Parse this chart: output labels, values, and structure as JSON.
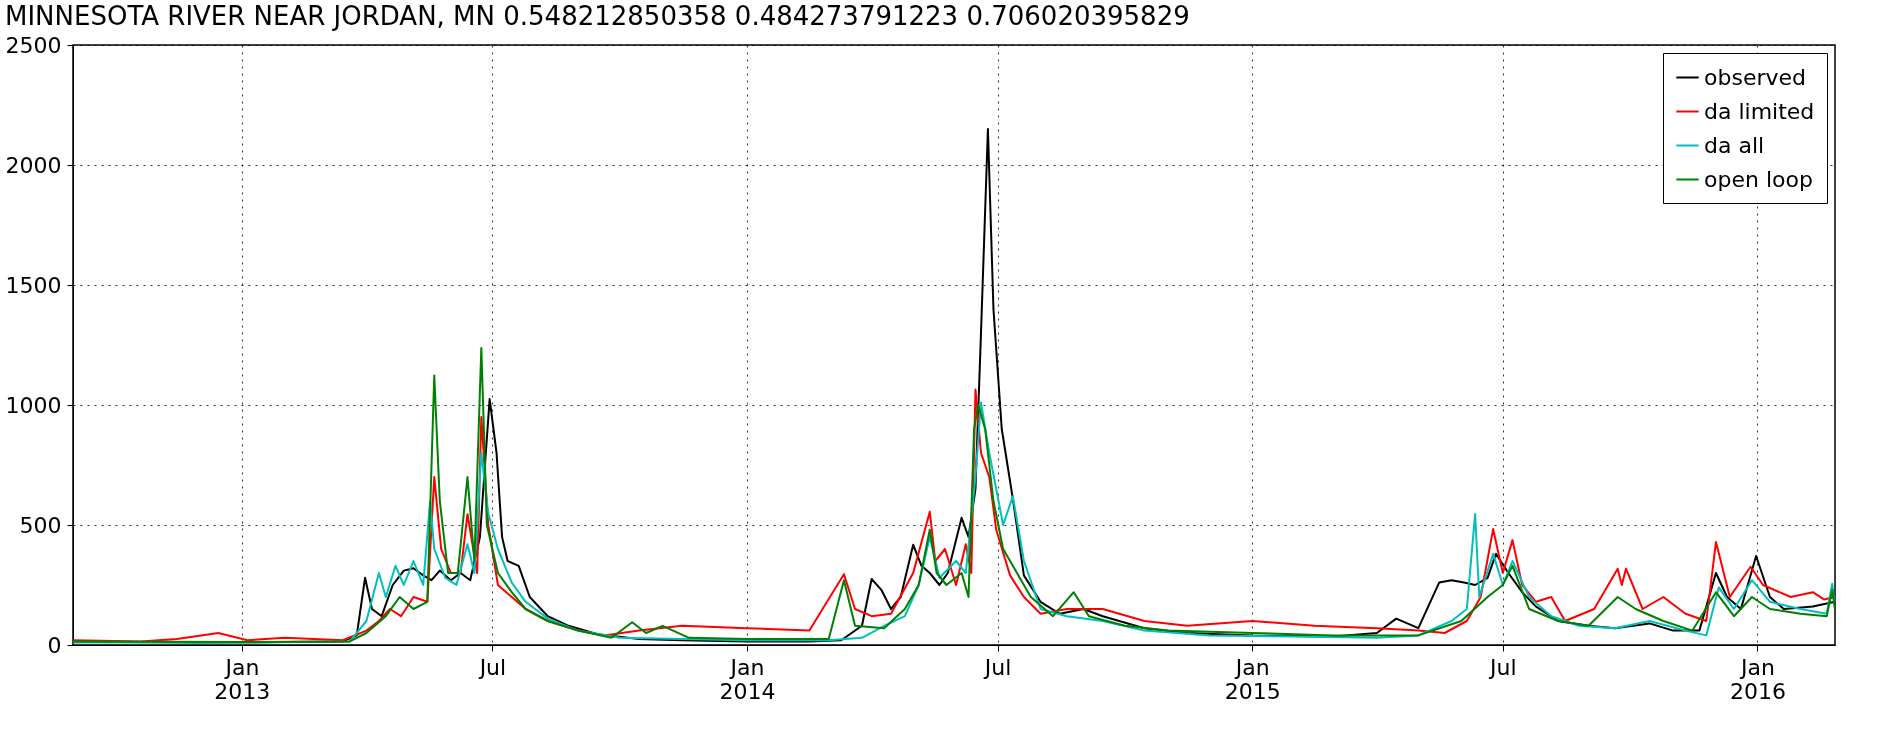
{
  "chart_data": {
    "type": "line",
    "title": "MINNESOTA RIVER NEAR JORDAN, MN     0.548212850358 0.484273791223 0.706020395829",
    "xlim": [
      "2012-09-01",
      "2016-02-26"
    ],
    "xticks": [
      {
        "value": "2013-01-01",
        "label": "Jan 2013"
      },
      {
        "value": "2013-07-01",
        "label": "Jul"
      },
      {
        "value": "2014-01-01",
        "label": "Jan 2014"
      },
      {
        "value": "2014-07-01",
        "label": "Jul"
      },
      {
        "value": "2015-01-01",
        "label": "Jan 2015"
      },
      {
        "value": "2015-07-01",
        "label": "Jul"
      },
      {
        "value": "2016-01-01",
        "label": "Jan 2016"
      }
    ],
    "ylim": [
      0,
      2500
    ],
    "yticks": [
      0,
      500,
      1000,
      1500,
      2000,
      2500
    ],
    "grid": true,
    "legend": "top right",
    "marker": "none",
    "line_style": "solid",
    "series": [
      {
        "name": "observed",
        "color": "#000000",
        "x": [
          "2012-09-01",
          "2012-10-15",
          "2012-12-01",
          "2013-02-01",
          "2013-03-15",
          "2013-03-25",
          "2013-03-31",
          "2013-04-05",
          "2013-04-12",
          "2013-04-20",
          "2013-04-28",
          "2013-05-05",
          "2013-05-12",
          "2013-05-18",
          "2013-05-24",
          "2013-06-01",
          "2013-06-08",
          "2013-06-15",
          "2013-06-22",
          "2013-06-29",
          "2013-07-04",
          "2013-07-08",
          "2013-07-12",
          "2013-07-20",
          "2013-07-28",
          "2013-08-10",
          "2013-08-25",
          "2013-09-15",
          "2013-10-15",
          "2013-11-15",
          "2014-01-01",
          "2014-02-15",
          "2014-03-10",
          "2014-03-25",
          "2014-04-01",
          "2014-04-08",
          "2014-04-15",
          "2014-04-22",
          "2014-05-01",
          "2014-05-07",
          "2014-05-13",
          "2014-05-20",
          "2014-05-26",
          "2014-06-05",
          "2014-06-10",
          "2014-06-15",
          "2014-06-19",
          "2014-06-24",
          "2014-06-28",
          "2014-07-04",
          "2014-07-12",
          "2014-07-20",
          "2014-08-01",
          "2014-08-15",
          "2014-09-01",
          "2014-09-15",
          "2014-10-15",
          "2014-11-15",
          "2015-01-01",
          "2015-03-01",
          "2015-04-01",
          "2015-04-15",
          "2015-05-01",
          "2015-05-16",
          "2015-05-25",
          "2015-06-03",
          "2015-06-11",
          "2015-06-20",
          "2015-06-26",
          "2015-07-05",
          "2015-07-15",
          "2015-07-25",
          "2015-08-10",
          "2015-09-01",
          "2015-09-20",
          "2015-10-15",
          "2015-11-01",
          "2015-11-20",
          "2015-12-02",
          "2015-12-10",
          "2015-12-20",
          "2015-12-31",
          "2016-01-10",
          "2016-01-20",
          "2016-02-10",
          "2016-02-26"
        ],
        "values": [
          15,
          12,
          10,
          12,
          15,
          40,
          280,
          150,
          120,
          250,
          310,
          320,
          290,
          270,
          310,
          270,
          300,
          270,
          450,
          1025,
          800,
          450,
          350,
          330,
          200,
          120,
          80,
          45,
          25,
          20,
          15,
          15,
          20,
          80,
          275,
          230,
          150,
          200,
          418,
          330,
          300,
          250,
          300,
          530,
          450,
          650,
          1300,
          2150,
          1400,
          900,
          610,
          290,
          180,
          130,
          150,
          120,
          70,
          50,
          40,
          35,
          50,
          110,
          70,
          260,
          270,
          260,
          250,
          280,
          380,
          300,
          220,
          160,
          100,
          80,
          70,
          90,
          60,
          60,
          300,
          200,
          150,
          371,
          200,
          150,
          160,
          180
        ]
      },
      {
        "name": "da limited",
        "color": "#ff0000",
        "x": [
          "2012-09-01",
          "2012-10-20",
          "2012-11-15",
          "2012-12-15",
          "2013-01-05",
          "2013-02-01",
          "2013-03-15",
          "2013-04-01",
          "2013-04-10",
          "2013-04-18",
          "2013-04-26",
          "2013-05-05",
          "2013-05-15",
          "2013-05-20",
          "2013-05-25",
          "2013-06-01",
          "2013-06-08",
          "2013-06-13",
          "2013-06-20",
          "2013-06-23",
          "2013-06-28",
          "2013-07-05",
          "2013-07-15",
          "2013-07-25",
          "2013-08-10",
          "2013-09-01",
          "2013-09-20",
          "2013-10-15",
          "2013-11-15",
          "2014-01-01",
          "2014-02-15",
          "2014-03-12",
          "2014-03-20",
          "2014-04-01",
          "2014-04-15",
          "2014-05-01",
          "2014-05-13",
          "2014-05-17",
          "2014-05-24",
          "2014-06-01",
          "2014-06-08",
          "2014-06-12",
          "2014-06-15",
          "2014-06-19",
          "2014-06-25",
          "2014-06-30",
          "2014-07-10",
          "2014-07-20",
          "2014-08-01",
          "2014-08-20",
          "2014-09-15",
          "2014-10-15",
          "2014-11-15",
          "2015-01-01",
          "2015-02-15",
          "2015-04-01",
          "2015-05-01",
          "2015-05-20",
          "2015-06-05",
          "2015-06-15",
          "2015-06-24",
          "2015-07-01",
          "2015-07-08",
          "2015-07-15",
          "2015-07-25",
          "2015-08-05",
          "2015-08-15",
          "2015-09-05",
          "2015-09-22",
          "2015-09-25",
          "2015-09-28",
          "2015-10-10",
          "2015-10-25",
          "2015-11-10",
          "2015-11-25",
          "2015-12-02",
          "2015-12-12",
          "2015-12-27",
          "2016-01-05",
          "2016-01-25",
          "2016-02-10",
          "2016-02-18",
          "2016-02-26"
        ],
        "values": [
          20,
          15,
          25,
          50,
          20,
          30,
          20,
          60,
          100,
          150,
          120,
          200,
          180,
          700,
          400,
          300,
          300,
          545,
          300,
          950,
          500,
          250,
          200,
          150,
          100,
          60,
          40,
          60,
          80,
          70,
          60,
          295,
          150,
          120,
          130,
          300,
          555,
          350,
          400,
          250,
          420,
          300,
          1065,
          800,
          700,
          480,
          290,
          200,
          130,
          150,
          150,
          100,
          80,
          100,
          80,
          70,
          60,
          50,
          100,
          200,
          483,
          300,
          437,
          250,
          180,
          200,
          100,
          150,
          318,
          250,
          318,
          150,
          200,
          130,
          100,
          429,
          200,
          326,
          250,
          200,
          220,
          190,
          200
        ]
      },
      {
        "name": "da all",
        "color": "#00bfbf",
        "x": [
          "2012-09-01",
          "2013-01-01",
          "2013-03-20",
          "2013-04-01",
          "2013-04-10",
          "2013-04-15",
          "2013-04-22",
          "2013-04-28",
          "2013-05-05",
          "2013-05-12",
          "2013-05-17",
          "2013-05-20",
          "2013-05-28",
          "2013-06-05",
          "2013-06-13",
          "2013-06-18",
          "2013-06-23",
          "2013-06-28",
          "2013-07-05",
          "2013-07-15",
          "2013-07-25",
          "2013-08-10",
          "2013-09-01",
          "2013-10-01",
          "2013-11-15",
          "2014-01-01",
          "2014-03-01",
          "2014-03-25",
          "2014-04-10",
          "2014-04-25",
          "2014-05-05",
          "2014-05-13",
          "2014-05-20",
          "2014-06-01",
          "2014-06-08",
          "2014-06-15",
          "2014-06-19",
          "2014-06-25",
          "2014-07-05",
          "2014-07-12",
          "2014-07-20",
          "2014-08-01",
          "2014-08-20",
          "2014-09-15",
          "2014-10-15",
          "2014-12-01",
          "2015-02-01",
          "2015-04-01",
          "2015-05-01",
          "2015-05-25",
          "2015-06-05",
          "2015-06-11",
          "2015-06-14",
          "2015-06-24",
          "2015-07-01",
          "2015-07-08",
          "2015-07-20",
          "2015-08-05",
          "2015-08-25",
          "2015-09-20",
          "2015-10-15",
          "2015-11-10",
          "2015-11-25",
          "2015-12-04",
          "2015-12-15",
          "2015-12-28",
          "2016-01-10",
          "2016-02-01",
          "2016-02-20",
          "2016-02-24",
          "2016-02-26"
        ],
        "values": [
          10,
          10,
          15,
          100,
          300,
          200,
          330,
          250,
          350,
          250,
          600,
          400,
          280,
          250,
          420,
          300,
          800,
          550,
          400,
          260,
          180,
          110,
          60,
          30,
          25,
          20,
          20,
          30,
          80,
          120,
          250,
          450,
          280,
          350,
          300,
          700,
          1010,
          800,
          500,
          620,
          350,
          150,
          120,
          100,
          60,
          40,
          35,
          30,
          40,
          100,
          150,
          546,
          200,
          380,
          250,
          350,
          200,
          120,
          80,
          70,
          100,
          60,
          40,
          240,
          150,
          270,
          180,
          150,
          130,
          255,
          150
        ]
      },
      {
        "name": "open loop",
        "color": "#008000",
        "x": [
          "2012-09-01",
          "2013-01-01",
          "2013-03-20",
          "2013-04-01",
          "2013-04-15",
          "2013-04-25",
          "2013-05-05",
          "2013-05-15",
          "2013-05-20",
          "2013-05-24",
          "2013-05-30",
          "2013-06-06",
          "2013-06-13",
          "2013-06-18",
          "2013-06-23",
          "2013-06-27",
          "2013-07-05",
          "2013-07-15",
          "2013-07-25",
          "2013-08-10",
          "2013-09-01",
          "2013-09-25",
          "2013-10-10",
          "2013-10-20",
          "2013-11-01",
          "2013-11-20",
          "2014-01-01",
          "2014-03-01",
          "2014-03-12",
          "2014-03-20",
          "2014-04-10",
          "2014-04-25",
          "2014-05-05",
          "2014-05-13",
          "2014-05-18",
          "2014-05-25",
          "2014-06-05",
          "2014-06-10",
          "2014-06-14",
          "2014-06-17",
          "2014-06-22",
          "2014-06-28",
          "2014-07-05",
          "2014-07-15",
          "2014-07-25",
          "2014-08-10",
          "2014-08-25",
          "2014-09-05",
          "2014-10-01",
          "2014-11-01",
          "2015-01-01",
          "2015-03-01",
          "2015-05-01",
          "2015-06-01",
          "2015-06-20",
          "2015-07-01",
          "2015-07-08",
          "2015-07-20",
          "2015-08-10",
          "2015-09-01",
          "2015-09-22",
          "2015-10-05",
          "2015-10-25",
          "2015-11-15",
          "2015-12-02",
          "2015-12-15",
          "2015-12-28",
          "2016-01-10",
          "2016-02-01",
          "2016-02-20",
          "2016-02-24",
          "2016-02-26"
        ],
        "values": [
          15,
          12,
          15,
          50,
          120,
          200,
          150,
          180,
          1123,
          600,
          300,
          300,
          700,
          350,
          1238,
          500,
          300,
          220,
          150,
          100,
          60,
          30,
          95,
          50,
          80,
          30,
          25,
          25,
          270,
          80,
          70,
          150,
          250,
          480,
          300,
          250,
          300,
          200,
          900,
          1000,
          900,
          600,
          400,
          300,
          200,
          120,
          220,
          120,
          80,
          60,
          50,
          40,
          40,
          100,
          200,
          250,
          330,
          150,
          100,
          80,
          200,
          150,
          100,
          60,
          220,
          120,
          200,
          150,
          130,
          120,
          230,
          150
        ]
      }
    ]
  }
}
